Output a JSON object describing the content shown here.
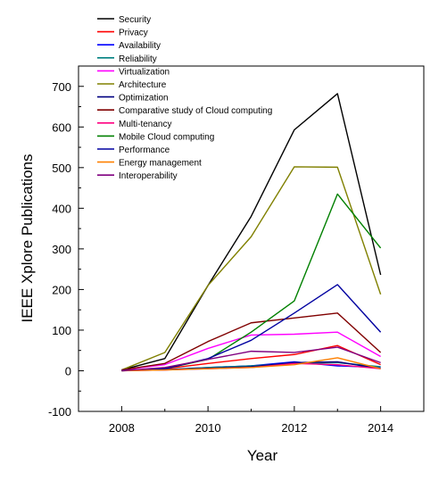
{
  "chart_data": {
    "type": "line",
    "title": "",
    "xlabel": "Year",
    "ylabel": "IEEE Xplore Publications",
    "xlim": [
      2007,
      2015
    ],
    "ylim": [
      -100,
      750
    ],
    "x_ticks": [
      2008,
      2010,
      2012,
      2014
    ],
    "y_ticks": [
      -100,
      0,
      100,
      200,
      300,
      400,
      500,
      600,
      700
    ],
    "x_tick_labels": [
      "2008",
      "2010",
      "2012",
      "2014"
    ],
    "y_tick_labels": [
      "-100",
      "0",
      "100",
      "200",
      "300",
      "400",
      "500",
      "600",
      "700"
    ],
    "grid": false,
    "legend_position": "top-left",
    "x": [
      2008,
      2009,
      2010,
      2011,
      2012,
      2013,
      2014
    ],
    "series": [
      {
        "name": "Security",
        "color": "#000000",
        "values": [
          2,
          30,
          210,
          380,
          593,
          682,
          236
        ]
      },
      {
        "name": "Privacy",
        "color": "#ff0000",
        "values": [
          1,
          5,
          18,
          30,
          40,
          62,
          15
        ]
      },
      {
        "name": "Availability",
        "color": "#0000ff",
        "values": [
          0,
          2,
          8,
          12,
          22,
          12,
          8
        ]
      },
      {
        "name": "Reliability",
        "color": "#008080",
        "values": [
          0,
          3,
          8,
          12,
          18,
          20,
          10
        ]
      },
      {
        "name": "Virtualization",
        "color": "#ff00ff",
        "values": [
          2,
          15,
          55,
          88,
          90,
          95,
          35
        ]
      },
      {
        "name": "Architecture",
        "color": "#808000",
        "values": [
          2,
          45,
          210,
          330,
          502,
          501,
          188
        ]
      },
      {
        "name": "Optimization",
        "color": "#000080",
        "values": [
          0,
          3,
          6,
          10,
          20,
          22,
          5
        ]
      },
      {
        "name": "Comparative study of Cloud computing",
        "color": "#800000",
        "values": [
          2,
          18,
          72,
          118,
          130,
          142,
          45
        ]
      },
      {
        "name": "Multi-tenancy",
        "color": "#ff0080",
        "values": [
          0,
          2,
          5,
          8,
          18,
          15,
          5
        ]
      },
      {
        "name": "Mobile Cloud computing",
        "color": "#008000",
        "values": [
          0,
          5,
          28,
          95,
          172,
          435,
          302
        ]
      },
      {
        "name": "Performance",
        "color": "#0000a0",
        "values": [
          1,
          5,
          30,
          75,
          142,
          212,
          95
        ]
      },
      {
        "name": "Energy management",
        "color": "#ff8000",
        "values": [
          0,
          2,
          5,
          8,
          15,
          32,
          5
        ]
      },
      {
        "name": "Interoperability",
        "color": "#800080",
        "values": [
          0,
          8,
          28,
          48,
          45,
          58,
          20
        ]
      }
    ]
  }
}
